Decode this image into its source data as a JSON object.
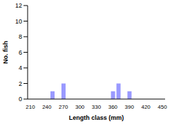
{
  "chart_data": {
    "type": "bar",
    "x_label": "Length class (mm)",
    "y_label": "No. fish",
    "categories": [
      "210",
      null,
      null,
      "240",
      null,
      null,
      "270",
      null,
      null,
      "300",
      null,
      null,
      "330",
      null,
      null,
      "360",
      null,
      null,
      "390",
      null,
      null,
      "420",
      null,
      null,
      "450"
    ],
    "values": [
      0,
      0,
      0,
      0,
      1,
      0,
      2,
      0,
      0,
      0,
      0,
      0,
      0,
      0,
      0,
      1,
      2,
      0,
      1,
      0,
      0,
      0,
      0,
      0,
      0
    ],
    "color": "#9999ff",
    "ylim": [
      0,
      12
    ],
    "yticks": [
      0,
      2,
      4,
      6,
      8,
      10,
      12
    ],
    "grid": false
  }
}
